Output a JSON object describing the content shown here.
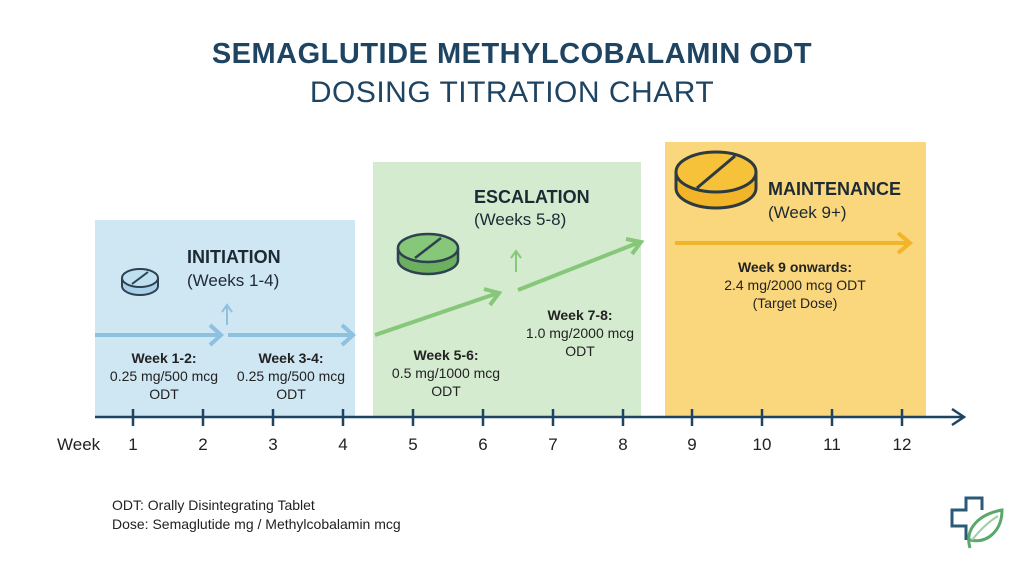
{
  "title": "SEMAGLUTIDE METHYLCOBALAMIN ODT",
  "subtitle": "DOSING TITRATION CHART",
  "axis": {
    "label": "Week",
    "ticks": [
      "1",
      "2",
      "3",
      "4",
      "5",
      "6",
      "7",
      "8",
      "9",
      "10",
      "11",
      "12"
    ]
  },
  "phases": [
    {
      "name": "INITIATION",
      "range": "(Weeks 1-4)",
      "color": "#cfe6f3",
      "icon": "pill-icon",
      "doses": [
        {
          "label": "Week 1-2:",
          "dose": "0.25 mg/500 mcg",
          "form": "ODT"
        },
        {
          "label": "Week 3-4:",
          "dose": "0.25 mg/500 mcg",
          "form": "ODT"
        }
      ]
    },
    {
      "name": "ESCALATION",
      "range": "(Weeks 5-8)",
      "color": "#d4ebd0",
      "icon": "pill-icon",
      "doses": [
        {
          "label": "Week 5-6:",
          "dose": "0.5 mg/1000 mcg",
          "form": "ODT"
        },
        {
          "label": "Week 7-8:",
          "dose": "1.0 mg/2000 mcg",
          "form": "ODT"
        }
      ]
    },
    {
      "name": "MAINTENANCE",
      "range": "(Week 9+)",
      "color": "#fad77c",
      "icon": "pill-icon",
      "doses": [
        {
          "label": "Week 9 onwards:",
          "dose": "2.4 mg/2000 mcg ODT",
          "form": "(Target Dose)"
        }
      ]
    }
  ],
  "notes": [
    "ODT: Orally Disintegrating Tablet",
    "Dose: Semaglutide mg / Methylcobalamin mcg"
  ],
  "logo": "medical-cross-leaf-logo"
}
